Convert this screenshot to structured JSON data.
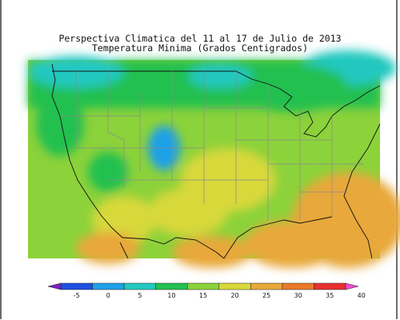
{
  "header": {
    "title_line1": "Perspectiva Climatica del 11 al 17 de Julio de 2013",
    "title_line2": "Temperatura Minima (Grados Centigrados)"
  },
  "legend": {
    "ticks": [
      "-5",
      "0",
      "5",
      "10",
      "15",
      "20",
      "25",
      "30",
      "35",
      "40"
    ],
    "colors": [
      "#7a1fc8",
      "#1f4fe0",
      "#1fa0e8",
      "#22c8c0",
      "#22c050",
      "#8cd23a",
      "#d8d83a",
      "#e8a83a",
      "#e87a2a",
      "#e83030",
      "#f04ad0"
    ]
  },
  "map": {
    "ocean_color": "#ffffff",
    "border_color": "#111111",
    "state_line_color": "#8a8a8a"
  }
}
